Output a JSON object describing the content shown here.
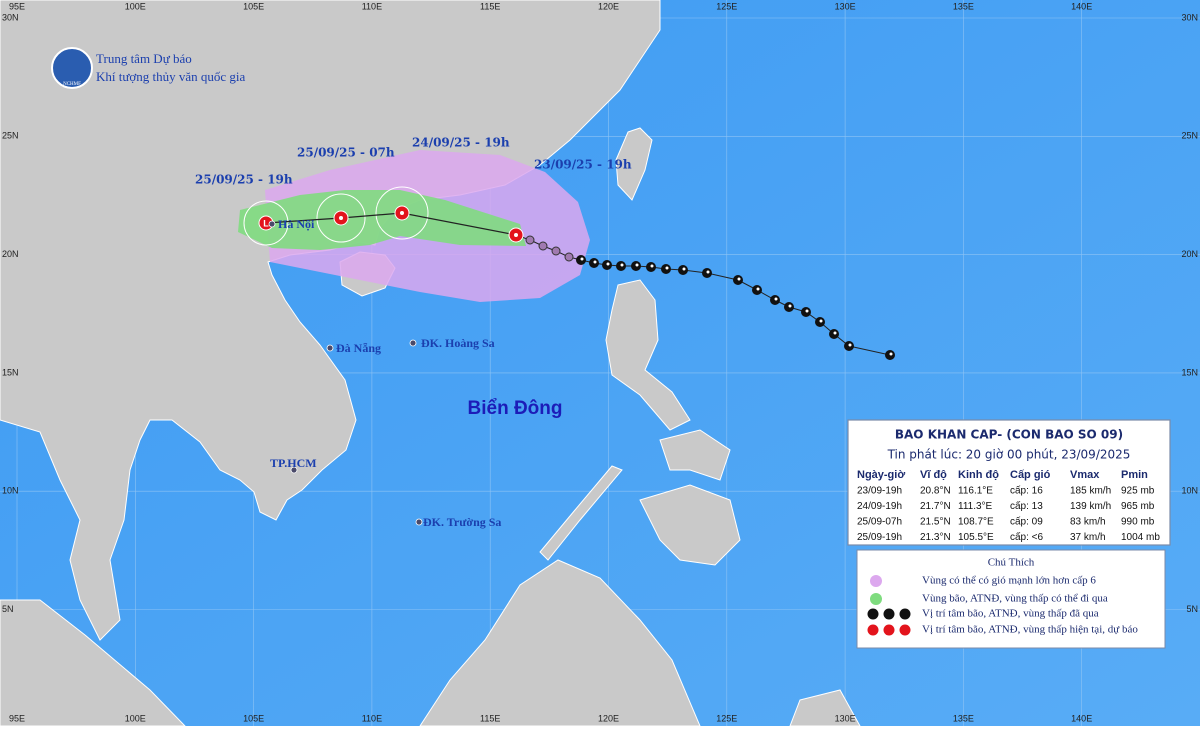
{
  "header": {
    "org_line1": "Trung tâm Dự báo",
    "org_line2": "Khí tượng thủy văn quốc gia",
    "logo_text": "NCHMF"
  },
  "grid": {
    "lon": [
      {
        "value": 95,
        "label": "95E"
      },
      {
        "value": 100,
        "label": "100E"
      },
      {
        "value": 105,
        "label": "105E"
      },
      {
        "value": 110,
        "label": "110E"
      },
      {
        "value": 115,
        "label": "115E"
      },
      {
        "value": 120,
        "label": "120E"
      },
      {
        "value": 125,
        "label": "125E"
      },
      {
        "value": 130,
        "label": "130E"
      },
      {
        "value": 135,
        "label": "135E"
      },
      {
        "value": 140,
        "label": "140E"
      }
    ],
    "lat": [
      {
        "value": 30,
        "label": "30N"
      },
      {
        "value": 25,
        "label": "25N"
      },
      {
        "value": 20,
        "label": "20N"
      },
      {
        "value": 15,
        "label": "15N"
      },
      {
        "value": 10,
        "label": "10N"
      },
      {
        "value": 5,
        "label": "5N"
      }
    ]
  },
  "track_labels": [
    "25/09/25 - 19h",
    "25/09/25 - 07h",
    "24/09/25 - 19h",
    "23/09/25 - 19h"
  ],
  "places": [
    "Hà Nội",
    "Đà Nẵng",
    "ĐK. Hoàng Sa",
    "TP.HCM",
    "ĐK. Trường Sa"
  ],
  "sea_label": "Biển Đông",
  "bulletin": {
    "title": "BAO KHAN CAP- (CON BAO SO 09)",
    "issued": "Tin phát lúc: 20 giờ 00 phút, 23/09/2025",
    "columns": [
      "Ngày-giờ",
      "Vĩ độ",
      "Kinh độ",
      "Cấp gió",
      "Vmax",
      "Pmin"
    ],
    "rows": [
      [
        "23/09-19h",
        "20.8°N",
        "116.1°E",
        "cấp: 16",
        "185 km/h",
        "925 mb"
      ],
      [
        "24/09-19h",
        "21.7°N",
        "111.3°E",
        "cấp: 13",
        "139 km/h",
        "965 mb"
      ],
      [
        "25/09-07h",
        "21.5°N",
        "108.7°E",
        "cấp: 09",
        "83 km/h",
        "990 mb"
      ],
      [
        "25/09-19h",
        "21.3°N",
        "105.5°E",
        "cấp: <6",
        "37 km/h",
        "1004 mb"
      ]
    ]
  },
  "legend": {
    "title": "Chú Thích",
    "items": [
      "Vùng có thể có gió mạnh lớn hơn cấp 6",
      "Vùng bão, ATNĐ, vùng thấp có thể đi qua",
      "Vị trí tâm bão, ATNĐ, vùng thấp đã qua",
      "Vị trí tâm bão, ATNĐ, vùng thấp hiện tại, dự báo"
    ]
  }
}
